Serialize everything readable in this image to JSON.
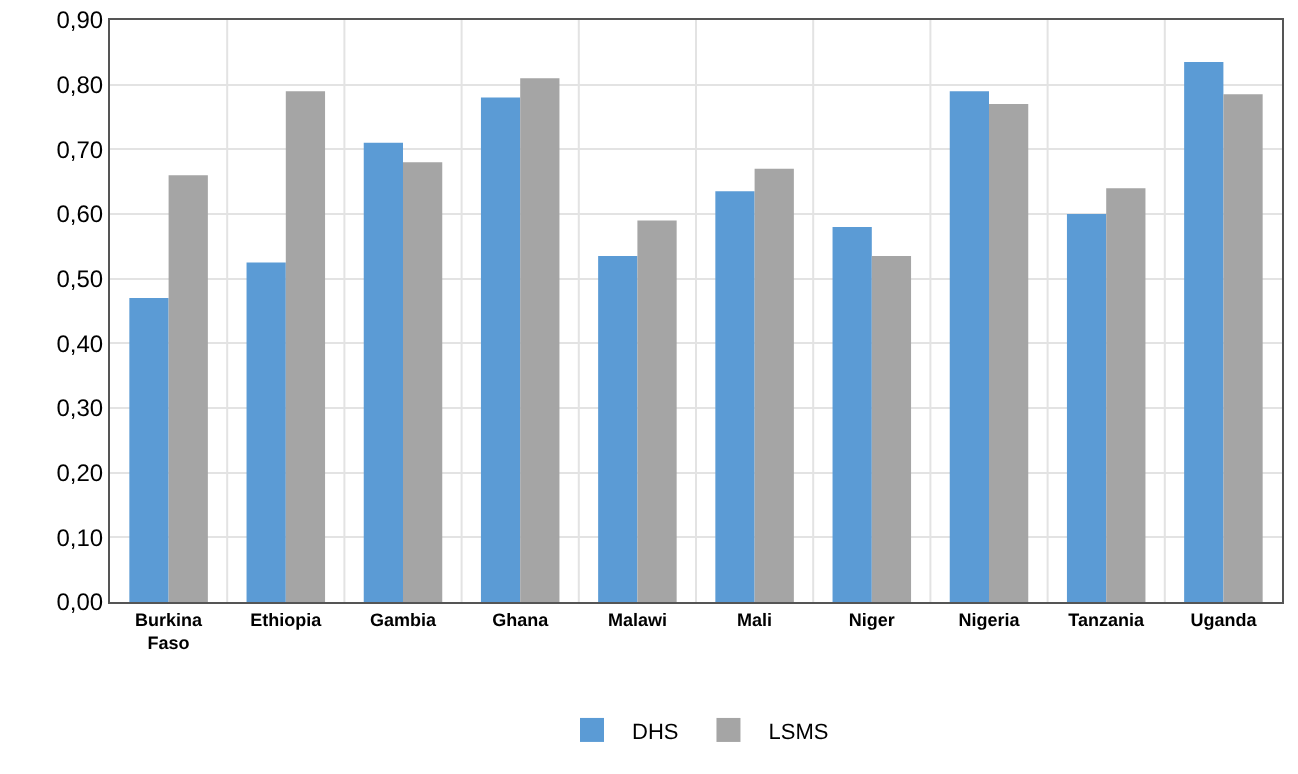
{
  "chart_data": {
    "type": "bar",
    "categories": [
      "Burkina Faso",
      "Ethiopia",
      "Gambia",
      "Ghana",
      "Malawi",
      "Mali",
      "Niger",
      "Nigeria",
      "Tanzania",
      "Uganda"
    ],
    "series": [
      {
        "name": "DHS",
        "color": "#5b9bd5",
        "values": [
          0.47,
          0.525,
          0.71,
          0.78,
          0.535,
          0.635,
          0.58,
          0.79,
          0.6,
          0.835
        ]
      },
      {
        "name": "LSMS",
        "color": "#a5a5a5",
        "values": [
          0.66,
          0.79,
          0.68,
          0.81,
          0.59,
          0.67,
          0.535,
          0.77,
          0.64,
          0.785
        ]
      }
    ],
    "ylim": [
      0,
      0.9
    ],
    "yticks": [
      {
        "value": 0,
        "label": "0,00"
      },
      {
        "value": 0.1,
        "label": "0,10"
      },
      {
        "value": 0.2,
        "label": "0,20"
      },
      {
        "value": 0.3,
        "label": "0,30"
      },
      {
        "value": 0.4,
        "label": "0,40"
      },
      {
        "value": 0.5,
        "label": "0,50"
      },
      {
        "value": 0.6,
        "label": "0,60"
      },
      {
        "value": 0.7,
        "label": "0,70"
      },
      {
        "value": 0.8,
        "label": "0,80"
      },
      {
        "value": 0.9,
        "label": "0,90"
      }
    ],
    "grid": true,
    "legend": "bottom"
  }
}
